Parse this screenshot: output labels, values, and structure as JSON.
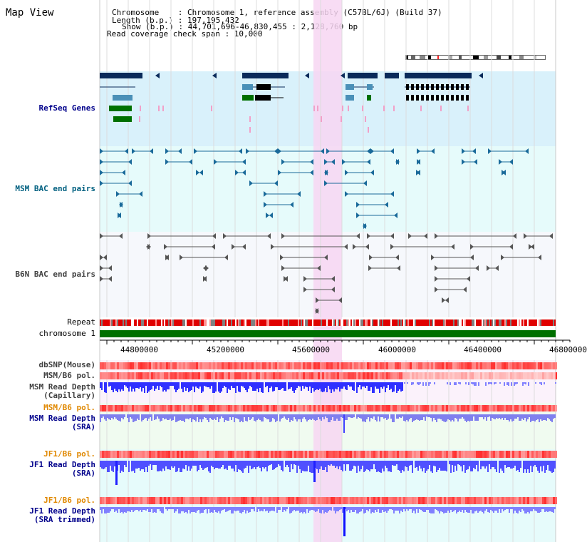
{
  "header": {
    "title": "Map View",
    "info_lines": [
      "Chromosome    : Chromosome 1, reference assembly (C57BL/6J) (Build 37)",
      "Length (b.p.) : 197,195,432",
      "Show (b.p.) : 44,701,696-46,830,455 : 2,128,760 bp",
      "Read coverage check span : 10,000"
    ]
  },
  "tracks": {
    "refseq": "RefSeq Genes",
    "msm_bac": "MSM BAC end pairs",
    "b6n_bac": "B6N BAC end pairs",
    "repeat": "Repeat",
    "chromosome": "chromosome 1",
    "dbsnp": "dbSNP(Mouse)",
    "msm_b6_pol_1": "MSM/B6 pol.",
    "msm_depth_cap_1": "MSM Read Depth",
    "msm_depth_cap_2": "(Capillary)",
    "msm_b6_pol_2": "MSM/B6 pol.",
    "msm_depth_sra_1": "MSM Read Depth",
    "msm_depth_sra_2": "(SRA)",
    "jf1_b6_pol_1": "JF1/B6 pol.",
    "jf1_depth_sra_1": "JF1 Read Depth",
    "jf1_depth_sra_2": "(SRA)",
    "jf1_b6_pol_2": "JF1/B6 pol.",
    "jf1_depth_trim_1": "JF1 Read Depth",
    "jf1_depth_trim_2": "(SRA trimmed)"
  },
  "axis": {
    "ticks": [
      "44800000",
      "45200000",
      "45600000",
      "46000000",
      "46400000",
      "46800000"
    ]
  },
  "colors": {
    "refseq_bg": "#d9f1fb",
    "bac_bg": "#e6fbfb",
    "b6n_bg": "#f6f8fc",
    "highlight": "#f7d6f2",
    "chromosome": "#007000",
    "gene_navy": "#0a2a5a",
    "gene_teal": "#4a90b8",
    "gene_green": "#007000",
    "pol_red": "#ff9090",
    "depth_blue": "#4040ff",
    "label_navy": "#00008b",
    "label_orange": "#e08800",
    "label_teal": "#006080"
  }
}
